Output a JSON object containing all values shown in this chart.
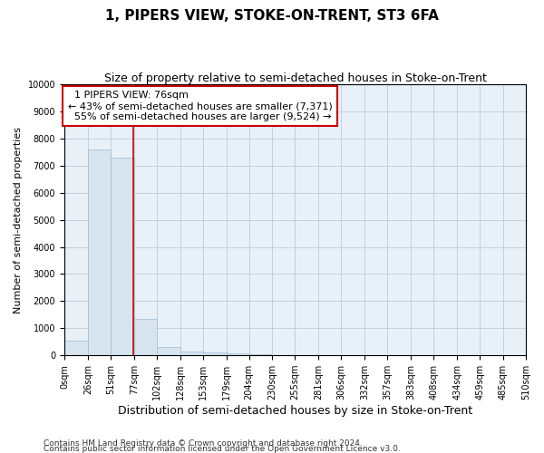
{
  "title": "1, PIPERS VIEW, STOKE-ON-TRENT, ST3 6FA",
  "subtitle": "Size of property relative to semi-detached houses in Stoke-on-Trent",
  "xlabel": "Distribution of semi-detached houses by size in Stoke-on-Trent",
  "ylabel": "Number of semi-detached properties",
  "footnote1": "Contains HM Land Registry data © Crown copyright and database right 2024.",
  "footnote2": "Contains public sector information licensed under the Open Government Licence v3.0.",
  "property_size": 76,
  "property_label": "1 PIPERS VIEW: 76sqm",
  "pct_smaller": 43,
  "pct_larger": 55,
  "n_smaller": 7371,
  "n_larger": 9524,
  "bin_edges": [
    0,
    26,
    51,
    77,
    102,
    128,
    153,
    179,
    204,
    230,
    255,
    281,
    306,
    332,
    357,
    383,
    408,
    434,
    459,
    485,
    510
  ],
  "bar_values": [
    550,
    7600,
    7300,
    1350,
    300,
    150,
    110,
    90,
    50,
    0,
    0,
    0,
    0,
    0,
    0,
    0,
    0,
    0,
    0,
    0
  ],
  "bar_color": "#d6e4f0",
  "bar_edge_color": "#a0bcd4",
  "vline_color": "#cc0000",
  "annotation_box_color": "#cc0000",
  "background_color": "#ffffff",
  "plot_bg_color": "#e8f0f8",
  "grid_color": "#c0ccd8",
  "ylim": [
    0,
    10000
  ],
  "yticks": [
    0,
    1000,
    2000,
    3000,
    4000,
    5000,
    6000,
    7000,
    8000,
    9000,
    10000
  ],
  "title_fontsize": 11,
  "subtitle_fontsize": 9,
  "xlabel_fontsize": 9,
  "ylabel_fontsize": 8,
  "tick_fontsize": 7,
  "annotation_fontsize": 8,
  "footnote_fontsize": 6.5
}
